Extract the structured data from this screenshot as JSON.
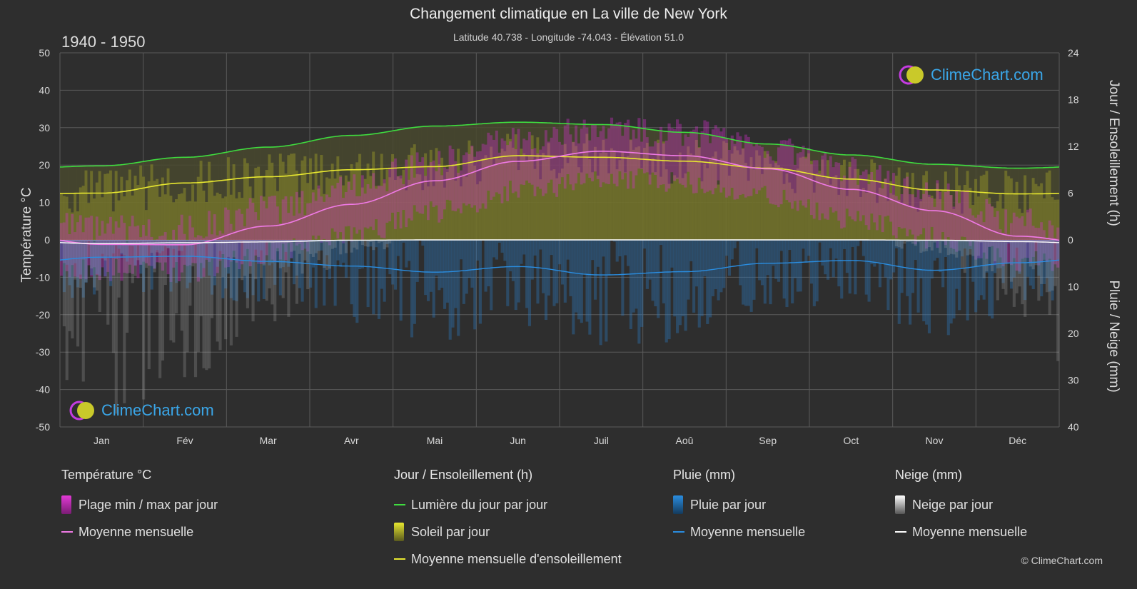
{
  "header": {
    "title": "Changement climatique en La ville de New York",
    "subtitle": "Latitude 40.738 - Longitude -74.043 - Élévation 51.0",
    "period": "1940 - 1950"
  },
  "axes": {
    "left_title": "Température °C",
    "right_top_title": "Jour / Ensoleillement (h)",
    "right_bottom_title": "Pluie / Neige (mm)"
  },
  "logo": {
    "text": "ClimeChart.com"
  },
  "legend": {
    "temperature": {
      "head": "Température °C",
      "range": "Plage min / max par jour",
      "mean": "Moyenne mensuelle"
    },
    "sun": {
      "head": "Jour / Ensoleillement (h)",
      "daylight": "Lumière du jour par jour",
      "sunshine": "Soleil par jour",
      "sun_mean": "Moyenne mensuelle d'ensoleillement"
    },
    "rain": {
      "head": "Pluie (mm)",
      "per_day": "Pluie par jour",
      "mean": "Moyenne mensuelle"
    },
    "snow": {
      "head": "Neige (mm)",
      "per_day": "Neige par jour",
      "mean": "Moyenne mensuelle"
    }
  },
  "copyright": "© ClimeChart.com",
  "colors": {
    "temp_mean": "#f07ae6",
    "temp_range": "#d92fd0",
    "daylight": "#3fdc3f",
    "sunshine_mean": "#e8e830",
    "sunshine_fill": "#8c8c2a",
    "rain": "#2a7fc9",
    "snow": "#b0b0b0",
    "grid": "#5a5a5a"
  },
  "chart_data": {
    "type": "line",
    "categories": [
      "Jan",
      "Fév",
      "Mar",
      "Avr",
      "Mai",
      "Jun",
      "Juil",
      "Aoû",
      "Sep",
      "Oct",
      "Nov",
      "Déc"
    ],
    "y_left": {
      "min": -50,
      "max": 50,
      "ticks": [
        "50",
        "40",
        "30",
        "20",
        "10",
        "0",
        "-10",
        "-20",
        "-30",
        "-40",
        "-50"
      ]
    },
    "y_right_top": {
      "min": 0,
      "max": 24,
      "ticks": [
        "24",
        "18",
        "12",
        "6",
        "0"
      ]
    },
    "y_right_bottom": {
      "min": 0,
      "max": 40,
      "ticks": [
        "0",
        "10",
        "20",
        "30",
        "40"
      ]
    },
    "series": [
      {
        "key": "temp_mean",
        "unit": "°C",
        "values": [
          -1.2,
          -1.3,
          3.7,
          9.5,
          15.8,
          21.0,
          23.7,
          22.5,
          19.0,
          13.5,
          7.8,
          1.0
        ]
      },
      {
        "key": "temp_max",
        "unit": "°C",
        "values": [
          2.5,
          3.0,
          8.0,
          14.5,
          21.0,
          26.5,
          29.5,
          28.5,
          24.5,
          18.5,
          12.0,
          4.5
        ]
      },
      {
        "key": "temp_min",
        "unit": "°C",
        "values": [
          -5.0,
          -5.5,
          -0.5,
          4.5,
          10.5,
          16.0,
          19.5,
          18.5,
          14.5,
          8.5,
          3.5,
          -2.5
        ]
      },
      {
        "key": "daylight",
        "unit": "h",
        "values": [
          9.5,
          10.6,
          11.9,
          13.4,
          14.6,
          15.1,
          14.8,
          13.8,
          12.3,
          10.9,
          9.7,
          9.2
        ]
      },
      {
        "key": "sunshine_mean",
        "unit": "h",
        "values": [
          6.0,
          7.3,
          8.1,
          9.0,
          9.4,
          10.8,
          10.6,
          10.1,
          9.2,
          7.8,
          6.4,
          5.9
        ]
      },
      {
        "key": "rain_mean",
        "unit": "mm",
        "values": [
          3.7,
          3.5,
          4.6,
          5.6,
          6.9,
          5.7,
          7.5,
          6.8,
          5.0,
          4.4,
          6.5,
          4.9
        ]
      },
      {
        "key": "snow_mean",
        "unit": "mm",
        "values": [
          1.3,
          1.0,
          0.7,
          0.1,
          0.0,
          0.0,
          0.0,
          0.0,
          0.0,
          0.0,
          0.1,
          0.6
        ]
      }
    ]
  }
}
